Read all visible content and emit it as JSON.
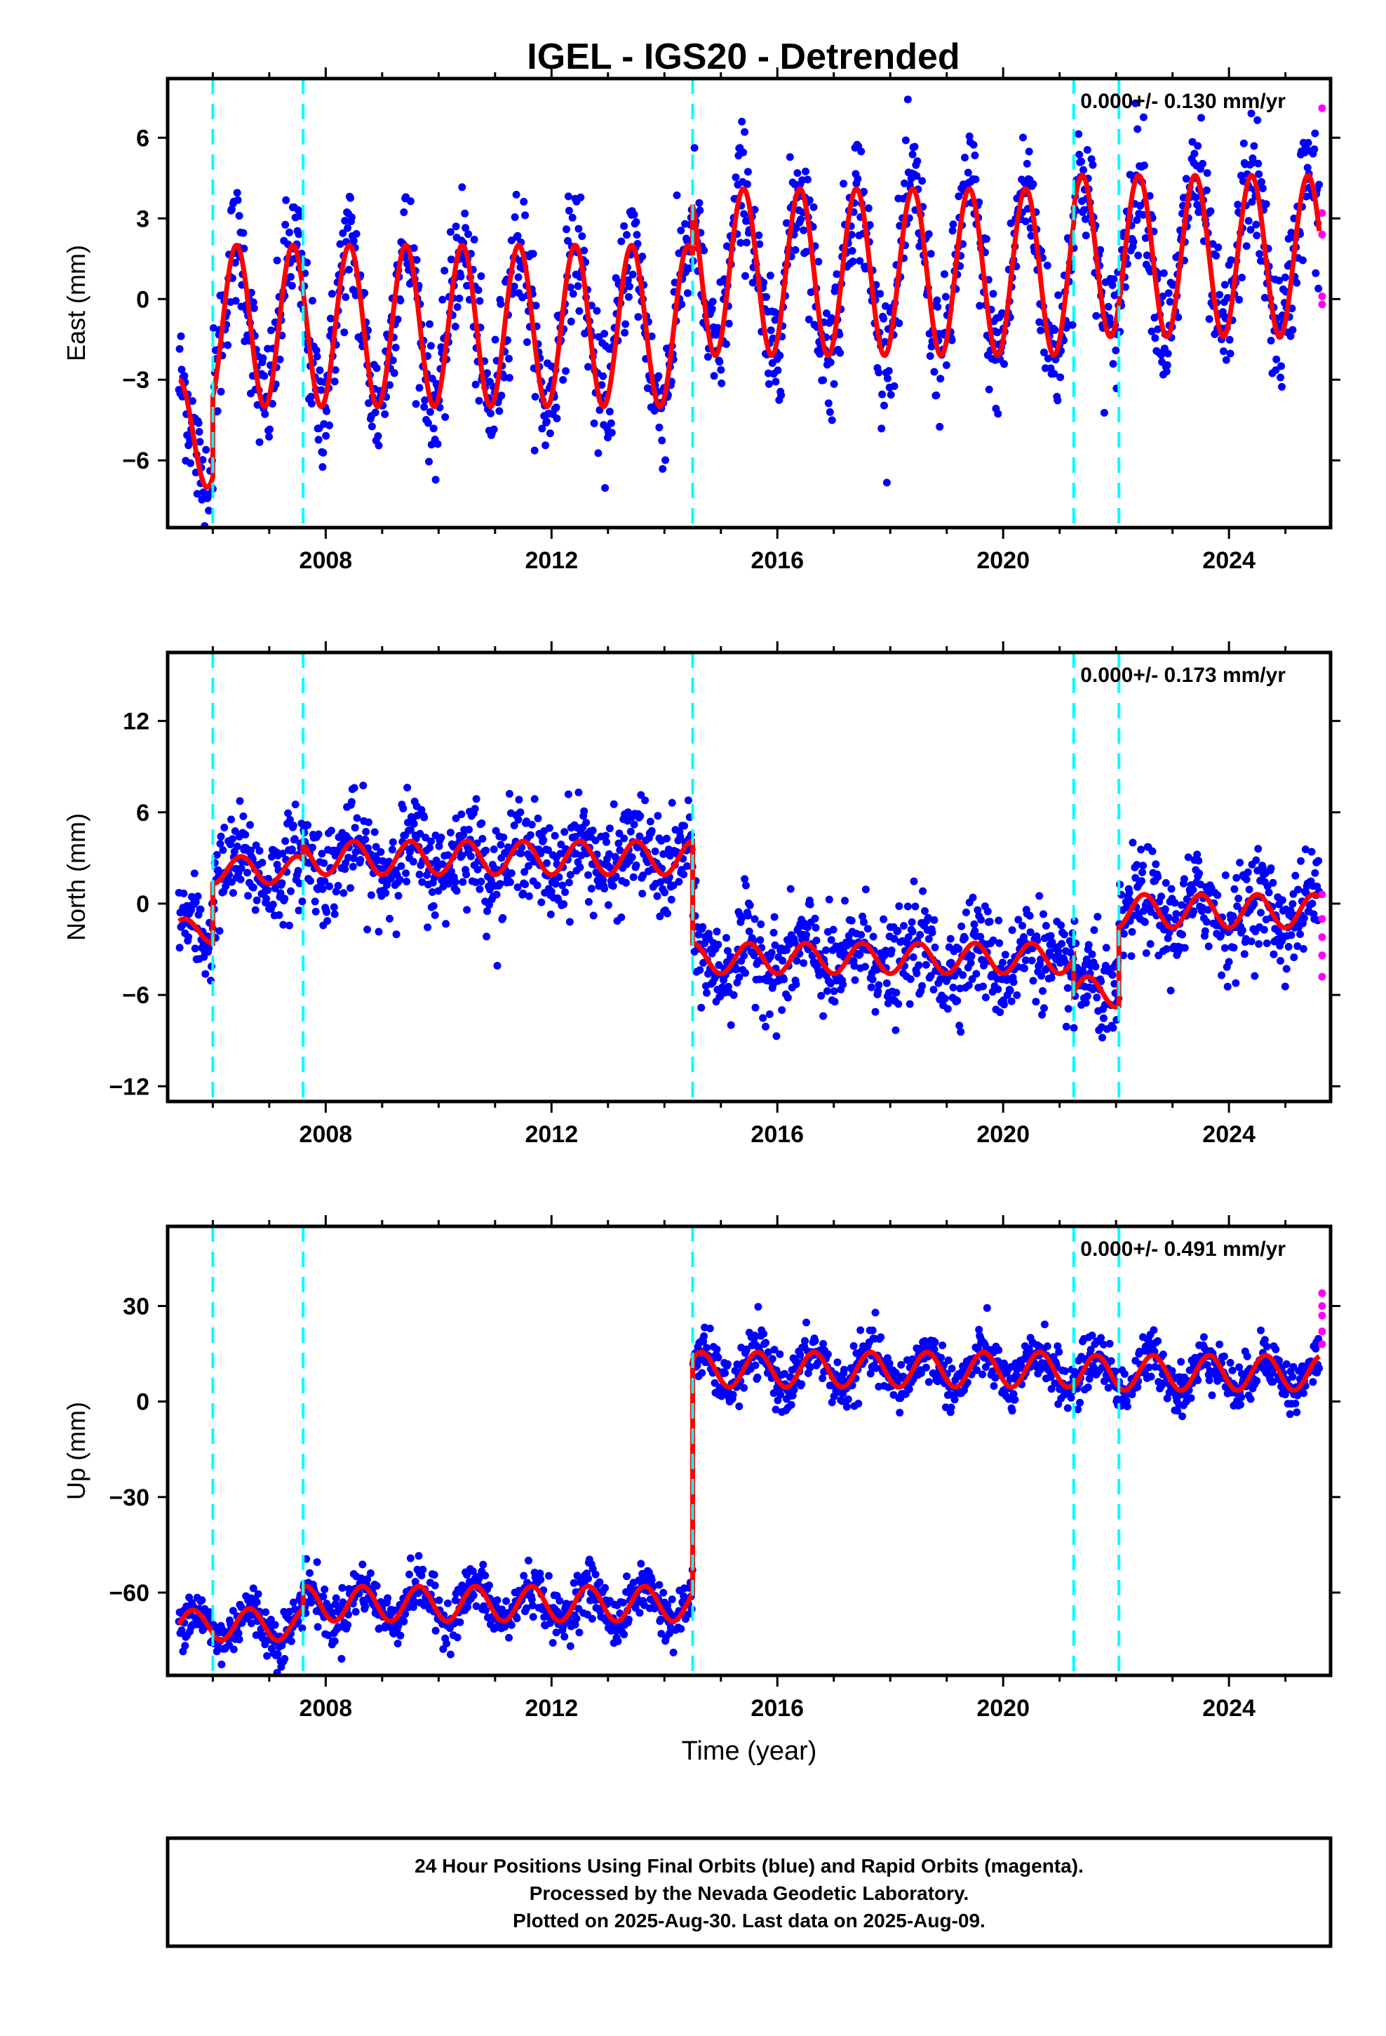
{
  "figure": {
    "title": "IGEL - IGS20 - Detrended",
    "footer": [
      "24 Hour Positions Using Final Orbits (blue) and Rapid Orbits (magenta).",
      "Processed by the Nevada Geodetic Laboratory.",
      "Plotted on 2025-Aug-30. Last data on 2025-Aug-09."
    ]
  },
  "colors": {
    "final_orbits": "#0000ff",
    "rapid_orbits": "#ff00ff",
    "model": "#ff0000",
    "offsets": "#00ffff"
  },
  "chart_data": [
    {
      "type": "scatter",
      "component": "east",
      "ylabel": "East (mm)",
      "xlabel": "",
      "xlim": [
        2005.2,
        2025.8
      ],
      "ylim": [
        -8.5,
        8.2
      ],
      "xticks": [
        2008,
        2012,
        2016,
        2020,
        2024
      ],
      "yticks": [
        -6,
        -3,
        0,
        3,
        6
      ],
      "rate_label": "0.000+/- 0.130 mm/yr",
      "offset_epochs": [
        2006.0,
        2007.6,
        2014.5,
        2021.25,
        2022.05
      ],
      "model": {
        "segments": [
          {
            "start": 2005.4,
            "end": 2006.0,
            "mean": -5.0,
            "amplitude": 2.0,
            "phase_peak": 0.4
          },
          {
            "start": 2006.0,
            "end": 2014.5,
            "mean": -1.0,
            "amplitude": 3.0,
            "phase_peak": 0.42
          },
          {
            "start": 2014.5,
            "end": 2021.25,
            "mean": 1.0,
            "amplitude": 3.1,
            "phase_peak": 0.4
          },
          {
            "start": 2021.25,
            "end": 2025.6,
            "mean": 1.6,
            "amplitude": 3.0,
            "phase_peak": 0.4
          }
        ]
      },
      "scatter_spread": 1.2,
      "rapid_values": [
        7.1,
        3.2,
        2.4,
        0.1,
        -0.2
      ]
    },
    {
      "type": "scatter",
      "component": "north",
      "ylabel": "North (mm)",
      "xlabel": "",
      "xlim": [
        2005.2,
        2025.8
      ],
      "ylim": [
        -13.0,
        16.5
      ],
      "xticks": [
        2008,
        2012,
        2016,
        2020,
        2024
      ],
      "yticks": [
        -12,
        -6,
        0,
        6,
        12
      ],
      "rate_label": "0.000+/- 0.173 mm/yr",
      "offset_epochs": [
        2006.0,
        2007.6,
        2014.5,
        2021.25,
        2022.05
      ],
      "model": {
        "segments": [
          {
            "start": 2005.4,
            "end": 2006.0,
            "mean": -1.8,
            "amplitude": 0.8,
            "phase_peak": 0.5
          },
          {
            "start": 2006.0,
            "end": 2007.6,
            "mean": 2.2,
            "amplitude": 0.9,
            "phase_peak": 0.5
          },
          {
            "start": 2007.6,
            "end": 2014.5,
            "mean": 3.0,
            "amplitude": 1.1,
            "phase_peak": 0.5
          },
          {
            "start": 2014.5,
            "end": 2021.25,
            "mean": -3.6,
            "amplitude": 1.0,
            "phase_peak": 0.5
          },
          {
            "start": 2021.25,
            "end": 2022.05,
            "mean": -5.8,
            "amplitude": 1.0,
            "phase_peak": 0.5
          },
          {
            "start": 2022.05,
            "end": 2025.6,
            "mean": -0.5,
            "amplitude": 1.1,
            "phase_peak": 0.5
          }
        ]
      },
      "scatter_spread": 1.6,
      "rapid_values": [
        0.6,
        -1.0,
        -2.2,
        -3.4,
        -4.8
      ]
    },
    {
      "type": "scatter",
      "component": "up",
      "ylabel": "Up (mm)",
      "xlabel": "Time (year)",
      "xlim": [
        2005.2,
        2025.8
      ],
      "ylim": [
        -86.0,
        55.0
      ],
      "xticks": [
        2008,
        2012,
        2016,
        2020,
        2024
      ],
      "yticks": [
        -60,
        -30,
        0,
        30
      ],
      "rate_label": "0.000+/- 0.491 mm/yr",
      "offset_epochs": [
        2006.0,
        2007.6,
        2014.5,
        2021.25,
        2022.05
      ],
      "model": {
        "segments": [
          {
            "start": 2005.4,
            "end": 2006.0,
            "mean": -70.0,
            "amplitude": 4.5,
            "phase_peak": 0.65
          },
          {
            "start": 2006.0,
            "end": 2007.6,
            "mean": -70.0,
            "amplitude": 5.0,
            "phase_peak": 0.65
          },
          {
            "start": 2007.6,
            "end": 2014.5,
            "mean": -63.5,
            "amplitude": 5.5,
            "phase_peak": 0.65
          },
          {
            "start": 2014.5,
            "end": 2021.25,
            "mean": 10.0,
            "amplitude": 5.5,
            "phase_peak": 0.65
          },
          {
            "start": 2021.25,
            "end": 2025.6,
            "mean": 9.0,
            "amplitude": 5.5,
            "phase_peak": 0.65
          }
        ]
      },
      "scatter_spread": 4.0,
      "rapid_values": [
        34,
        30,
        27,
        22,
        18
      ]
    }
  ]
}
